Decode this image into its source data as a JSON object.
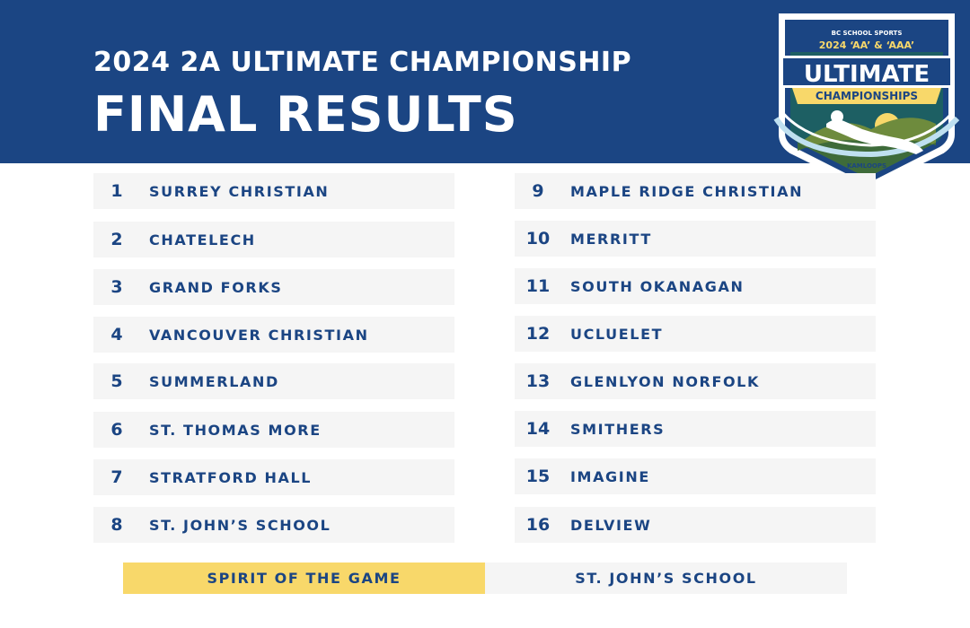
{
  "header": {
    "subtitle": "2024 2A ULTIMATE CHAMPIONSHIP",
    "title": "FINAL RESULTS",
    "background_color": "#1b4583",
    "text_color": "#ffffff"
  },
  "logo": {
    "org": "BC SCHOOL SPORTS",
    "year_line": "2024 ‘AA’ & ‘AAA’",
    "word1": "ULTIMATE",
    "word2": "CHAMPIONSHIPS",
    "location": "KAMLOOPS"
  },
  "results": {
    "left": [
      {
        "rank": "1",
        "team": "SURREY CHRISTIAN"
      },
      {
        "rank": "2",
        "team": "CHATELECH"
      },
      {
        "rank": "3",
        "team": "GRAND FORKS"
      },
      {
        "rank": "4",
        "team": "VANCOUVER CHRISTIAN"
      },
      {
        "rank": "5",
        "team": "SUMMERLAND"
      },
      {
        "rank": "6",
        "team": "ST. THOMAS MORE"
      },
      {
        "rank": "7",
        "team": "STRATFORD HALL"
      },
      {
        "rank": "8",
        "team": "ST. JOHN’S SCHOOL"
      }
    ],
    "right": [
      {
        "rank": "9",
        "team": "MAPLE RIDGE CHRISTIAN"
      },
      {
        "rank": "10",
        "team": "MERRITT"
      },
      {
        "rank": "11",
        "team": "SOUTH OKANAGAN"
      },
      {
        "rank": "12",
        "team": "UCLUELET"
      },
      {
        "rank": "13",
        "team": "GLENLYON NORFOLK"
      },
      {
        "rank": "14",
        "team": "SMITHERS"
      },
      {
        "rank": "15",
        "team": "IMAGINE"
      },
      {
        "rank": "16",
        "team": "DELVIEW"
      }
    ],
    "row_color": "#f5f5f5",
    "text_color": "#1b4583"
  },
  "spirit": {
    "label": "SPIRIT OF THE GAME",
    "value": "ST. JOHN’S SCHOOL",
    "label_color": "#f8d86a"
  }
}
